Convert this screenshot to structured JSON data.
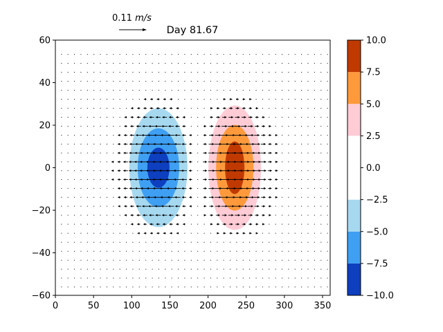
{
  "chart_data": {
    "type": "contour+quiver",
    "title": "Day 81.67",
    "quiver_key": {
      "value": "0.11",
      "unit": "m/s"
    },
    "xlim": [
      0,
      360
    ],
    "ylim": [
      -60,
      60
    ],
    "xticks": [
      "0",
      "50",
      "100",
      "150",
      "200",
      "250",
      "300",
      "350"
    ],
    "xtick_values": [
      0,
      50,
      100,
      150,
      200,
      250,
      300,
      350
    ],
    "yticks": [
      "−60",
      "−40",
      "−20",
      "0",
      "20",
      "40",
      "60"
    ],
    "ytick_values": [
      -60,
      -40,
      -20,
      0,
      20,
      40,
      60
    ],
    "colorbar": {
      "levels": [
        -10,
        -7.5,
        -5,
        -2.5,
        2.5,
        5,
        7.5,
        10
      ],
      "tick_labels": [
        "−10.0",
        "−7.5",
        "−5.0",
        "−2.5",
        "0.0",
        "2.5",
        "5.0",
        "7.5",
        "10.0"
      ],
      "tick_values": [
        -10,
        -7.5,
        -5,
        -2.5,
        0,
        2.5,
        5,
        7.5,
        10
      ],
      "colors": [
        "#0d3fbf",
        "#3f9ff2",
        "#a6d9f0",
        "#ffffff",
        "#ffccd6",
        "#ff9a3c",
        "#c03a00"
      ]
    },
    "fields": [
      {
        "center_lon": 135,
        "center_lat": 0,
        "sign": -1,
        "amplitude": 10
      },
      {
        "center_lon": 235,
        "center_lat": 0,
        "sign": 1,
        "amplitude": 10
      }
    ]
  }
}
